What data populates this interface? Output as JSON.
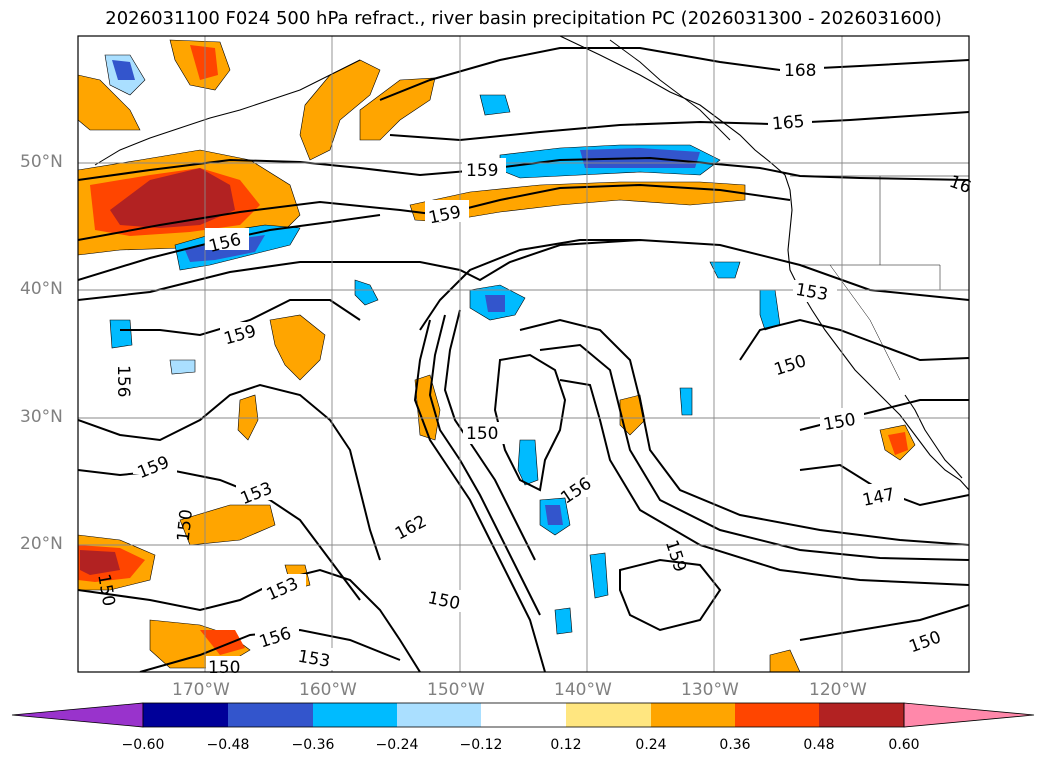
{
  "title": "2026031100 F024 500 hPa refract., river basin precipitation PC (2026031300 - 2026031600)",
  "map": {
    "lon_range": [
      -180,
      -110
    ],
    "lat_range": [
      10,
      60
    ],
    "grid": true,
    "lat_labels": [
      "50°N",
      "40°N",
      "30°N",
      "20°N"
    ],
    "lon_labels": [
      "170°W",
      "160°W",
      "150°W",
      "140°W",
      "130°W",
      "120°W"
    ],
    "contour_labels": [
      "168",
      "165",
      "159",
      "159",
      "16",
      "156",
      "153",
      "159",
      "156",
      "150",
      "150",
      "150",
      "159",
      "153",
      "156",
      "150",
      "162",
      "150",
      "153",
      "150",
      "156",
      "153",
      "150",
      "159",
      "147",
      "150"
    ]
  },
  "colorbar": {
    "tick_labels": [
      "−0.60",
      "−0.48",
      "−0.36",
      "−0.24",
      "−0.12",
      "0.12",
      "0.24",
      "0.36",
      "0.48",
      "0.60"
    ],
    "colors": [
      "#9933cc",
      "#000099",
      "#3355cc",
      "#00bbff",
      "#aadfff",
      "#ffffff",
      "#ffe680",
      "#ffa500",
      "#ff4500",
      "#b22222",
      "#ff88aa"
    ]
  }
}
